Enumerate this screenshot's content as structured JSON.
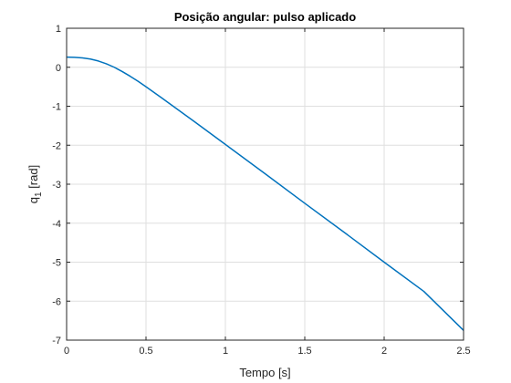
{
  "chart_data": {
    "type": "line",
    "title": "Posição angular: pulso aplicado",
    "xlabel": "Tempo [s]",
    "ylabel_base": "q",
    "ylabel_sub": "1",
    "ylabel_unit": "[rad]",
    "xlim": [
      0,
      2.5
    ],
    "ylim": [
      -7,
      1
    ],
    "xticks": [
      0,
      0.5,
      1,
      1.5,
      2,
      2.5
    ],
    "xtick_labels": [
      "0",
      "0.5",
      "1",
      "1.5",
      "2",
      "2.5"
    ],
    "yticks": [
      1,
      0,
      -1,
      -2,
      -3,
      -4,
      -5,
      -6,
      -7
    ],
    "ytick_labels": [
      "1",
      "0",
      "-1",
      "-2",
      "-3",
      "-4",
      "-5",
      "-6",
      "-7"
    ],
    "grid": true,
    "series": [
      {
        "color": "#0072BD",
        "x": [
          0,
          0.05,
          0.1,
          0.15,
          0.2,
          0.25,
          0.3,
          0.35,
          0.4,
          0.45,
          0.5,
          0.6,
          0.8,
          1.0,
          1.25,
          1.5,
          1.75,
          2.0,
          2.25,
          2.5
        ],
        "y": [
          0.26,
          0.255,
          0.24,
          0.21,
          0.16,
          0.09,
          0.0,
          -0.11,
          -0.23,
          -0.36,
          -0.5,
          -0.79,
          -1.38,
          -1.98,
          -2.73,
          -3.49,
          -4.24,
          -5.0,
          -5.75,
          -6.75
        ]
      }
    ]
  }
}
